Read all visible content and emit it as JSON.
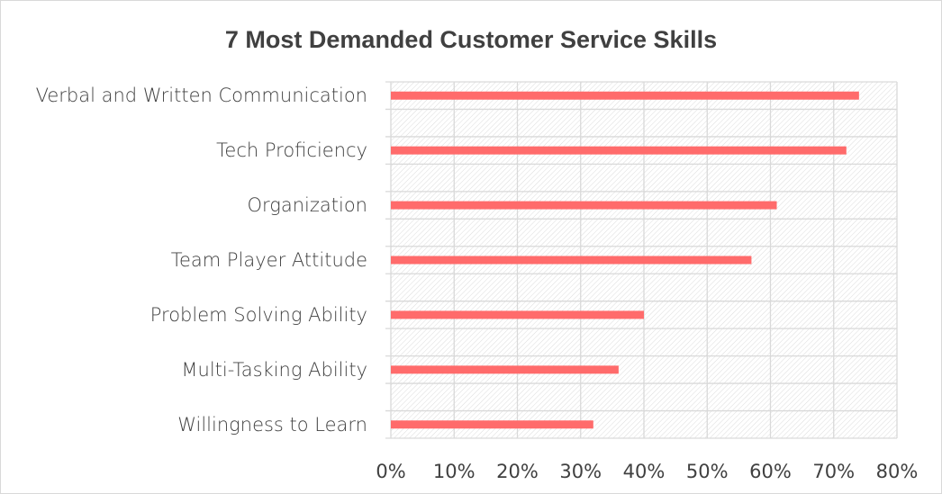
{
  "chart_data": {
    "type": "bar",
    "orientation": "horizontal",
    "title": "7 Most Demanded Customer Service Skills",
    "categories": [
      "Verbal and Written Communication",
      "Tech Proficiency",
      "Organization",
      "Team Player Attitude",
      "Problem Solving Ability",
      "Multi-Tasking Ability",
      "Willingness to Learn"
    ],
    "values": [
      74,
      72,
      61,
      57,
      40,
      36,
      32
    ],
    "value_unit": "%",
    "xlim": [
      0,
      80
    ],
    "xticks": [
      "0%",
      "10%",
      "20%",
      "30%",
      "40%",
      "50%",
      "60%",
      "70%",
      "80%"
    ],
    "grid": true,
    "background": "diagonal hatch",
    "colors": {
      "bar": "#FF6B6B",
      "grid": "#d9d9d9",
      "text": "#404040"
    }
  }
}
